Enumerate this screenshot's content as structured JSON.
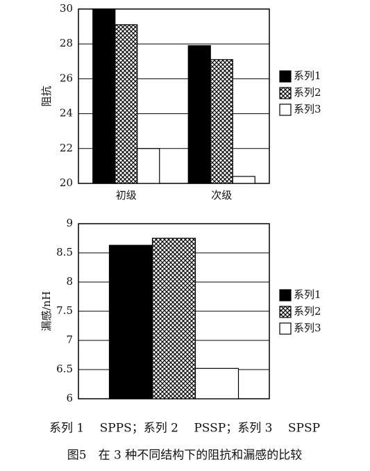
{
  "chart_data": [
    {
      "type": "bar",
      "y_label": "阻抗",
      "categories": [
        "初级",
        "次级"
      ],
      "series": [
        {
          "name": "系列1",
          "color": "#000000",
          "values": [
            30,
            27.9
          ]
        },
        {
          "name": "系列2",
          "color": "#ffffff",
          "pattern": "crosshatch",
          "values": [
            29.1,
            27.1
          ]
        },
        {
          "name": "系列3",
          "color": "#ffffff",
          "values": [
            22,
            20.4
          ]
        }
      ],
      "ylim": [
        20,
        30
      ],
      "yticks": [
        20,
        22,
        24,
        26,
        28,
        30
      ],
      "grid": true,
      "legend": "right"
    },
    {
      "type": "bar",
      "y_label": "漏感/nH",
      "categories": [
        null
      ],
      "series": [
        {
          "name": "系列1",
          "color": "#000000",
          "values": [
            8.63
          ]
        },
        {
          "name": "系列2",
          "color": "#ffffff",
          "pattern": "crosshatch",
          "values": [
            8.75
          ]
        },
        {
          "name": "系列3",
          "color": "#ffffff",
          "values": [
            6.52
          ]
        }
      ],
      "ylim": [
        6,
        9
      ],
      "yticks": [
        6,
        6.5,
        7,
        7.5,
        8,
        8.5,
        9
      ],
      "grid": true,
      "legend": "right"
    }
  ],
  "caption": {
    "note": "系列 1　 SPPS；系列 2　 PSSP；系列 3　 SPSP",
    "title": "图5　在 3 种不同结构下的阻抗和漏感的比较"
  }
}
